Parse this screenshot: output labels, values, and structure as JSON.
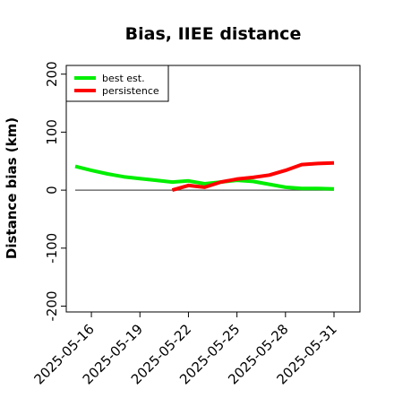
{
  "chart_data": {
    "type": "line",
    "title": "Bias, IIEE distance",
    "xlabel": "",
    "ylabel": "Distance bias (km)",
    "xlim": [
      "2025-05-14",
      "2025-05-31"
    ],
    "ylim": [
      -210,
      215
    ],
    "x_ticks": [
      "2025-05-16",
      "2025-05-19",
      "2025-05-22",
      "2025-05-25",
      "2025-05-28",
      "2025-05-31"
    ],
    "y_ticks": [
      -200,
      -100,
      0,
      100,
      200
    ],
    "grid": false,
    "legend_position": "top-left",
    "reference_line": {
      "y": 0,
      "color": "#555555"
    },
    "series": [
      {
        "name": "best est.",
        "color": "#00ee00",
        "x": [
          "2025-05-15",
          "2025-05-16",
          "2025-05-17",
          "2025-05-18",
          "2025-05-19",
          "2025-05-20",
          "2025-05-21",
          "2025-05-22",
          "2025-05-23",
          "2025-05-24",
          "2025-05-25",
          "2025-05-26",
          "2025-05-27",
          "2025-05-28",
          "2025-05-29",
          "2025-05-30",
          "2025-05-31"
        ],
        "y": [
          41,
          34,
          28,
          23,
          20,
          17,
          14,
          16,
          11,
          14,
          17,
          15,
          10,
          5,
          3,
          3,
          2
        ]
      },
      {
        "name": "persistence",
        "color": "#ff0000",
        "x": [
          "2025-05-21",
          "2025-05-22",
          "2025-05-23",
          "2025-05-24",
          "2025-05-25",
          "2025-05-26",
          "2025-05-27",
          "2025-05-28",
          "2025-05-29",
          "2025-05-30",
          "2025-05-31"
        ],
        "y": [
          0,
          8,
          5,
          14,
          19,
          22,
          26,
          34,
          44,
          46,
          47
        ]
      }
    ]
  }
}
